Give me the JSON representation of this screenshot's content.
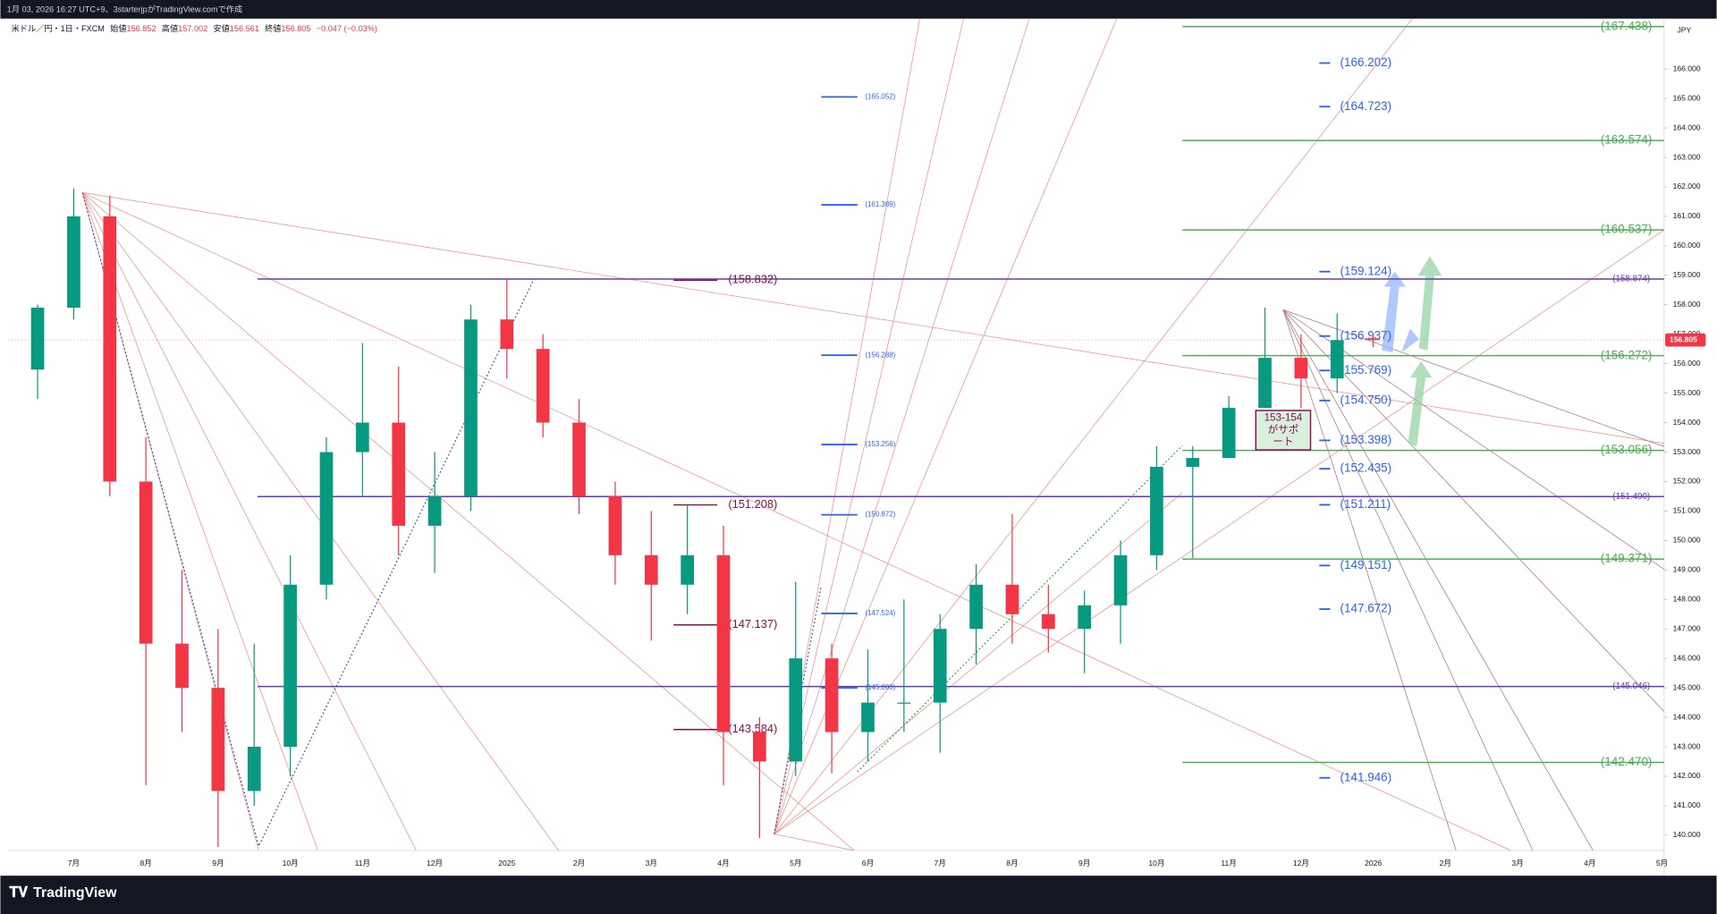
{
  "header": {
    "caption": "1月 03, 2026 16:27 UTC+9、3starterjpがTradingView.comで作成",
    "open_label": "始値",
    "high_label": "高値",
    "low_label": "安値",
    "close_label": "終値",
    "change": "−0.047 (−0.03%)",
    "brand": "TradingView"
  },
  "chart_data": {
    "type": "candlestick",
    "title": "米ドル／円・1日・FXCM",
    "y_unit": "JPY",
    "color_up": "#089981",
    "color_down": "#f23645",
    "categories": [
      null,
      "7月",
      null,
      "8月",
      null,
      "9月",
      null,
      "10月",
      null,
      "11月",
      null,
      "12月",
      null,
      "2025",
      null,
      "2月",
      null,
      "3月",
      null,
      "4月",
      null,
      "5月",
      null,
      "6月",
      null,
      "7月",
      null,
      "8月",
      null,
      "9月",
      null,
      "10月",
      null,
      "11月",
      null,
      "12月",
      null,
      "2026",
      null,
      "2月",
      null,
      "3月",
      null,
      "4月",
      null,
      "5月"
    ],
    "open": [
      155.8,
      157.9,
      161.0,
      152.0,
      146.5,
      145.0,
      141.5,
      143.0,
      148.5,
      153.0,
      154.0,
      150.5,
      151.5,
      157.5,
      156.5,
      154.0,
      151.5,
      149.5,
      148.5,
      149.5,
      143.5,
      142.5,
      146.0,
      143.5,
      144.5,
      144.5,
      147.0,
      148.5,
      147.5,
      147.0,
      147.8,
      149.5,
      152.5,
      152.8,
      154.5,
      156.2,
      155.5,
      156.852,
      null,
      null,
      null,
      null,
      null,
      null,
      null,
      null
    ],
    "high": [
      158.0,
      161.95,
      161.7,
      153.5,
      149.0,
      147.0,
      146.5,
      149.5,
      153.5,
      156.7,
      155.9,
      153.0,
      158.0,
      158.9,
      157.0,
      154.8,
      152.0,
      151.0,
      151.2,
      150.5,
      144.0,
      148.6,
      146.5,
      146.3,
      148.0,
      147.5,
      149.2,
      150.9,
      148.5,
      148.3,
      150.0,
      153.2,
      153.2,
      154.9,
      157.9,
      157.0,
      157.7,
      157.002,
      null,
      null,
      null,
      null,
      null,
      null,
      null,
      null
    ],
    "low": [
      154.8,
      157.5,
      151.5,
      141.7,
      143.5,
      139.6,
      141.0,
      142.0,
      148.0,
      151.5,
      149.5,
      148.9,
      151.0,
      155.5,
      153.5,
      150.9,
      148.5,
      146.6,
      147.5,
      141.7,
      139.9,
      142.0,
      142.1,
      142.5,
      143.5,
      142.8,
      145.8,
      146.5,
      146.2,
      145.5,
      146.5,
      149.0,
      149.4,
      152.8,
      154.5,
      154.5,
      155.0,
      156.561,
      null,
      null,
      null,
      null,
      null,
      null,
      null,
      null
    ],
    "close": [
      157.9,
      161.0,
      152.0,
      146.5,
      145.0,
      141.5,
      143.0,
      148.5,
      153.0,
      154.0,
      150.5,
      151.5,
      157.5,
      156.5,
      154.0,
      151.5,
      149.5,
      148.5,
      149.5,
      143.5,
      142.5,
      146.0,
      143.5,
      144.5,
      144.5,
      147.0,
      148.5,
      147.5,
      147.0,
      147.8,
      149.5,
      152.5,
      152.8,
      154.5,
      156.2,
      155.5,
      156.8,
      156.805,
      null,
      null,
      null,
      null,
      null,
      null,
      null,
      null
    ],
    "ylim": [
      139.48,
      167.71
    ],
    "yticks": [
      {
        "value": 140,
        "label": "140.000"
      },
      {
        "value": 141,
        "label": "141.000"
      },
      {
        "value": 142,
        "label": "142.000"
      },
      {
        "value": 143,
        "label": "143.000"
      },
      {
        "value": 144,
        "label": "144.000"
      },
      {
        "value": 145,
        "label": "145.000"
      },
      {
        "value": 146,
        "label": "146.000"
      },
      {
        "value": 147,
        "label": "147.000"
      },
      {
        "value": 148,
        "label": "148.000"
      },
      {
        "value": 149,
        "label": "149.000"
      },
      {
        "value": 150,
        "label": "150.000"
      },
      {
        "value": 151,
        "label": "151.000"
      },
      {
        "value": 152,
        "label": "152.000"
      },
      {
        "value": 153,
        "label": "153.000"
      },
      {
        "value": 154,
        "label": "154.000"
      },
      {
        "value": 155,
        "label": "155.000"
      },
      {
        "value": 156,
        "label": "156.000"
      },
      {
        "value": 157,
        "label": "157.000"
      },
      {
        "value": 158,
        "label": "158.000"
      },
      {
        "value": 159,
        "label": "159.000"
      },
      {
        "value": 160,
        "label": "160.000"
      },
      {
        "value": 161,
        "label": "161.000"
      },
      {
        "value": 162,
        "label": "162.000"
      },
      {
        "value": 163,
        "label": "163.000"
      },
      {
        "value": 164,
        "label": "164.000"
      },
      {
        "value": 165,
        "label": "165.000"
      },
      {
        "value": 166,
        "label": "166.000"
      }
    ],
    "grid": false,
    "levels": [
      {
        "color": "#4caf50",
        "values": [
          {
            "value": 167.438,
            "label": "(167.438)"
          },
          {
            "value": 163.574,
            "label": "(163.574)"
          },
          {
            "value": 160.537,
            "label": "(160.537)"
          },
          {
            "value": 156.272,
            "label": "(156.272)"
          },
          {
            "value": 153.056,
            "label": "(153.056)"
          },
          {
            "value": 149.371,
            "label": "(149.371)"
          },
          {
            "value": 142.47,
            "label": "(142.470)"
          }
        ]
      },
      {
        "color": "#673ab7",
        "values": [
          {
            "value": 158.874,
            "label": "(158.874)"
          },
          {
            "value": 151.49,
            "label": "(151.490)"
          },
          {
            "value": 145.046,
            "label": "(145.046)"
          }
        ]
      },
      {
        "color": "#2962ff",
        "values": [
          {
            "value": 166.202,
            "label": "(166.202)"
          },
          {
            "value": 164.723,
            "label": "(164.723)"
          },
          {
            "value": 159.124,
            "label": "(159.124)"
          },
          {
            "value": 156.937,
            "label": "(156.937)"
          },
          {
            "value": 155.769,
            "label": "(155.769)"
          },
          {
            "value": 154.75,
            "label": "(154.750)"
          },
          {
            "value": 153.398,
            "label": "(153.398)"
          },
          {
            "value": 152.435,
            "label": "(152.435)"
          },
          {
            "value": 151.211,
            "label": "(151.211)"
          },
          {
            "value": 149.151,
            "label": "(149.151)"
          },
          {
            "value": 147.672,
            "label": "(147.672)"
          },
          {
            "value": 141.946,
            "label": "(141.946)"
          }
        ]
      },
      {
        "color": "#2962ff",
        "values": [
          {
            "value": 165.052,
            "label": "(165.052)"
          },
          {
            "value": 161.389,
            "label": "(161.389)"
          },
          {
            "value": 156.288,
            "label": "(156.288)"
          },
          {
            "value": 153.256,
            "label": "(153.256)"
          },
          {
            "value": 150.872,
            "label": "(150.872)"
          },
          {
            "value": 147.524,
            "label": "(147.524)"
          },
          {
            "value": 145.0,
            "label": "(145.000)"
          }
        ]
      },
      {
        "color": "#880e4f",
        "values": [
          {
            "value": 158.832,
            "label": "(158.832)"
          },
          {
            "value": 151.208,
            "label": "(151.208)"
          },
          {
            "value": 147.137,
            "label": "(147.137)"
          },
          {
            "value": 143.584,
            "label": "(143.584)"
          }
        ]
      }
    ],
    "annotation": {
      "lines": [
        "153-154",
        "がサポ",
        "ート"
      ]
    }
  }
}
